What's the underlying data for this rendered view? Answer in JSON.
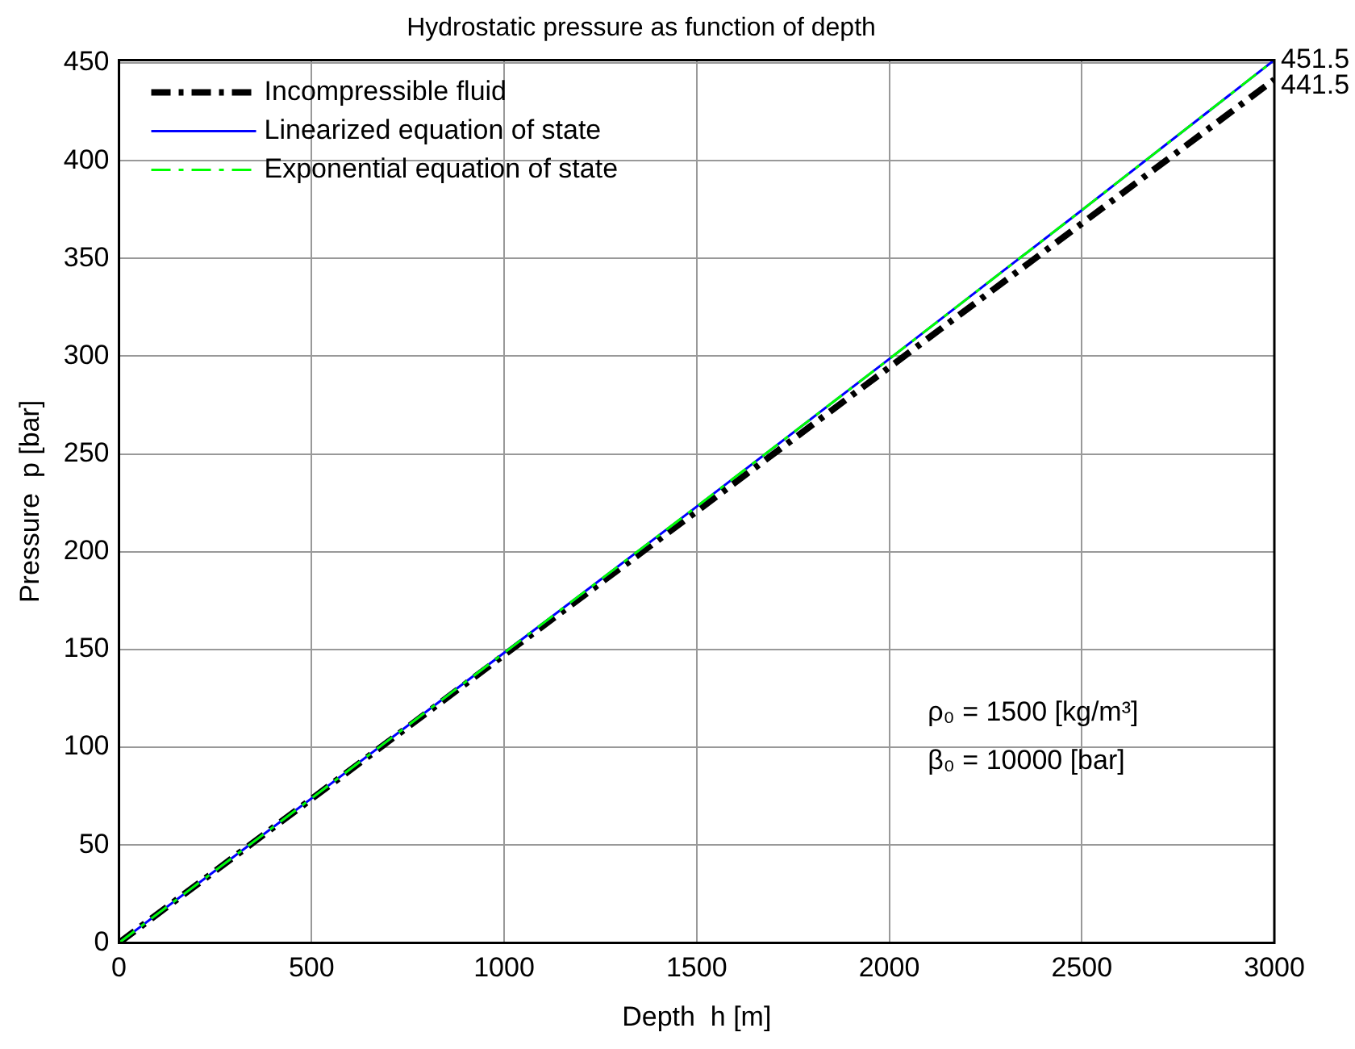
{
  "chart_data": {
    "type": "line",
    "title": "Hydrostatic pressure as function of depth",
    "xlabel": "Depth  h [m]",
    "ylabel": "Pressure  p [bar]",
    "x": [
      0,
      500,
      1000,
      1500,
      2000,
      2500,
      3000
    ],
    "series": [
      {
        "name": "Incompressible fluid",
        "color": "#000000",
        "line_style": "dashdot",
        "values": [
          0,
          73.6,
          147.2,
          220.7,
          294.3,
          367.9,
          441.5
        ]
      },
      {
        "name": "Linearized equation of state",
        "color": "#0000ff",
        "line_style": "solid",
        "values": [
          0,
          73.9,
          148.3,
          223.1,
          298.6,
          374.7,
          451.5
        ]
      },
      {
        "name": "Exponential equation of state",
        "color": "#00ff00",
        "line_style": "dashdot",
        "values": [
          0,
          73.9,
          148.3,
          223.1,
          298.6,
          374.7,
          451.5
        ]
      }
    ],
    "xlim": [
      0,
      3000
    ],
    "xticks": [
      0,
      500,
      1000,
      1500,
      2000,
      2500,
      3000
    ],
    "ylim": [
      0,
      451.5
    ],
    "yticks": [
      0,
      50,
      100,
      150,
      200,
      250,
      300,
      350,
      400,
      450
    ],
    "grid": true,
    "legend": "top left",
    "marker": "none",
    "annotations": [
      {
        "text": "451.5",
        "x": 3000,
        "y": 451.5
      },
      {
        "text": "441.5",
        "x": 3000,
        "y": 441.5
      },
      "ρ₀ = 1500 [kg/m³]",
      "β₀ = 10000 [bar]"
    ]
  }
}
